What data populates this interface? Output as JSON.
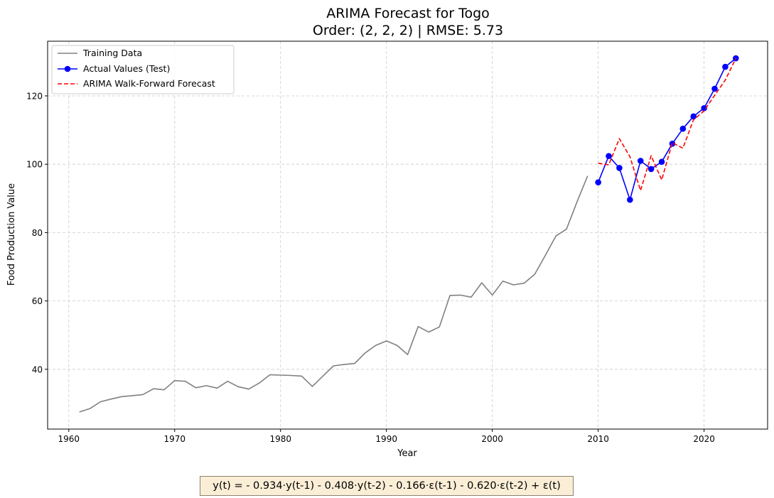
{
  "chart_data": {
    "type": "line",
    "title": "ARIMA Forecast for Togo",
    "subtitle": "Order: (2, 2, 2) | RMSE: 5.73",
    "xlabel": "Year",
    "ylabel": "Food Production Value",
    "xlim": [
      1958,
      2026
    ],
    "ylim": [
      22.5,
      136
    ],
    "x_ticks": [
      1960,
      1970,
      1980,
      1990,
      2000,
      2010,
      2020
    ],
    "y_ticks": [
      40,
      60,
      80,
      100,
      120
    ],
    "grid": true,
    "legend_position": "top-left",
    "series": [
      {
        "name": "Training Data",
        "color": "#808080",
        "style": "solid",
        "marker": "none",
        "x": [
          1961,
          1962,
          1963,
          1964,
          1965,
          1966,
          1967,
          1968,
          1969,
          1970,
          1971,
          1972,
          1973,
          1974,
          1975,
          1976,
          1977,
          1978,
          1979,
          1980,
          1981,
          1982,
          1983,
          1984,
          1985,
          1986,
          1987,
          1988,
          1989,
          1990,
          1991,
          1992,
          1993,
          1994,
          1995,
          1996,
          1997,
          1998,
          1999,
          2000,
          2001,
          2002,
          2003,
          2004,
          2005,
          2006,
          2007,
          2008,
          2009
        ],
        "values": [
          27.5,
          28.5,
          30.5,
          31.3,
          32.0,
          32.3,
          32.6,
          34.3,
          34.0,
          36.7,
          36.5,
          34.6,
          35.2,
          34.5,
          36.5,
          34.9,
          34.2,
          36.0,
          38.4,
          38.3,
          38.2,
          38.0,
          35.0,
          38.0,
          41.0,
          41.4,
          41.7,
          44.8,
          47.0,
          48.3,
          47.0,
          44.3,
          52.5,
          50.9,
          52.4,
          61.6,
          61.7,
          61.1,
          65.3,
          61.7,
          65.8,
          64.7,
          65.2,
          67.8,
          73.3,
          79.0,
          81.0,
          89.0,
          96.6
        ]
      },
      {
        "name": "Actual Values (Test)",
        "color": "#0000ff",
        "style": "solid",
        "marker": "circle",
        "x": [
          2010,
          2011,
          2012,
          2013,
          2014,
          2015,
          2016,
          2017,
          2018,
          2019,
          2020,
          2021,
          2022,
          2023
        ],
        "values": [
          94.7,
          102.4,
          98.9,
          89.6,
          101.0,
          98.6,
          100.7,
          106.0,
          110.4,
          114.0,
          116.4,
          122.1,
          128.5,
          131.0
        ]
      },
      {
        "name": "ARIMA Walk-Forward Forecast",
        "color": "#ff0000",
        "style": "dashed",
        "marker": "none",
        "x": [
          2010,
          2011,
          2012,
          2013,
          2014,
          2015,
          2016,
          2017,
          2018,
          2019,
          2020,
          2021,
          2022,
          2023
        ],
        "values": [
          100.3,
          99.8,
          107.5,
          102.2,
          92.3,
          102.5,
          95.4,
          106.3,
          104.7,
          113.0,
          115.6,
          120.2,
          124.6,
          131.0
        ]
      }
    ]
  },
  "equation": "y(t) = - 0.934·y(t-1) - 0.408·y(t-2) - 0.166·ε(t-1) - 0.620·ε(t-2) + ε(t)"
}
